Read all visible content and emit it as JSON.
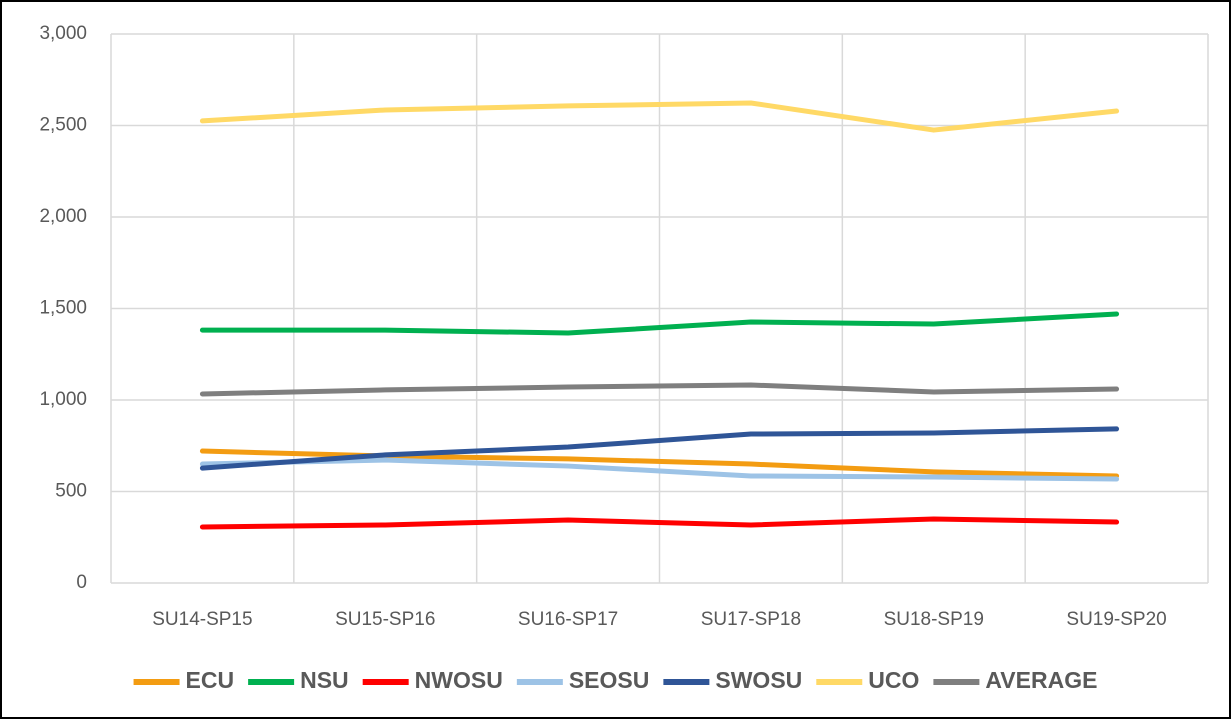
{
  "chart_data": {
    "type": "line",
    "categories": [
      "SU14-SP15",
      "SU15-SP16",
      "SU16-SP17",
      "SU17-SP18",
      "SU18-SP19",
      "SU19-SP20"
    ],
    "series": [
      {
        "name": "ECU",
        "color": "#f39c12",
        "values": [
          721,
          694,
          678,
          650,
          607,
          585
        ]
      },
      {
        "name": "NSU",
        "color": "#00b050",
        "values": [
          1382,
          1382,
          1366,
          1426,
          1415,
          1470
        ]
      },
      {
        "name": "NWOSU",
        "color": "#ff0000",
        "values": [
          306,
          317,
          344,
          317,
          350,
          333
        ]
      },
      {
        "name": "SEOSU",
        "color": "#9dc3e6",
        "values": [
          650,
          672,
          639,
          585,
          579,
          568
        ]
      },
      {
        "name": "SWOSU",
        "color": "#2f5597",
        "values": [
          628,
          700,
          743,
          814,
          820,
          842
        ]
      },
      {
        "name": "UCO",
        "color": "#ffd966",
        "values": [
          2525,
          2585,
          2607,
          2623,
          2475,
          2579
        ]
      },
      {
        "name": "AVERAGE",
        "color": "#7f7f7f",
        "values": [
          1033,
          1055,
          1071,
          1082,
          1044,
          1060
        ]
      }
    ],
    "ylim": [
      0,
      3000
    ],
    "yticks": [
      0,
      500,
      {
        "value": 1000,
        "label": "1,000"
      },
      {
        "value": 1500,
        "label": "1,500"
      },
      {
        "value": 2000,
        "label": "2,000"
      },
      {
        "value": 2500,
        "label": "2,500"
      },
      {
        "value": 3000,
        "label": "3,000"
      }
    ],
    "grid": true,
    "legend": "bottom"
  }
}
